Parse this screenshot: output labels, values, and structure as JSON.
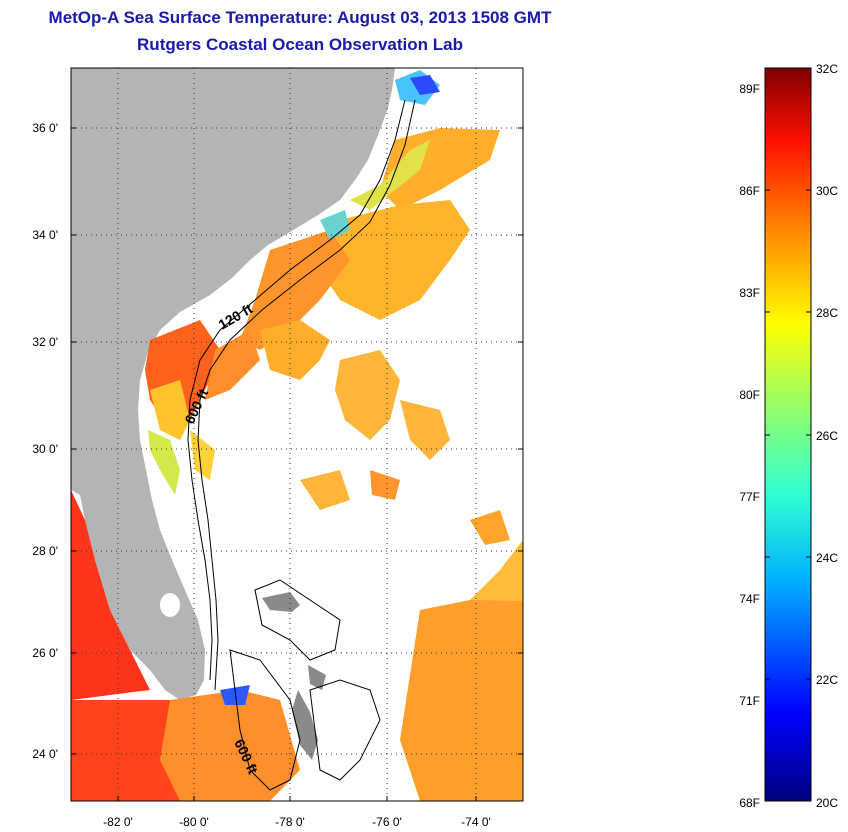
{
  "title_line1": "MetOp-A Sea Surface Temperature:  August 03, 2013 1508 GMT",
  "title_line2": "Rutgers Coastal Ocean Observation Lab",
  "lat_labels": [
    "36 0'",
    "34 0'",
    "32 0'",
    "30 0'",
    "28 0'",
    "26 0'",
    "24 0'"
  ],
  "lon_labels": [
    "-82 0'",
    "-80 0'",
    "-78 0'",
    "-76 0'",
    "-74 0'"
  ],
  "contours": {
    "shelf_120": "120 ft",
    "shelf_600a": "600 ft",
    "shelf_600b": "600 ft"
  },
  "colorbar": {
    "fahrenheit": [
      "89F",
      "86F",
      "83F",
      "80F",
      "77F",
      "74F",
      "71F",
      "68F"
    ],
    "celsius": [
      "32C",
      "30C",
      "28C",
      "26C",
      "24C",
      "22C",
      "20C"
    ]
  },
  "colors": {
    "land": "#b4b4b4",
    "ocean_nodata": "#ffffff",
    "title": "#1a1aa8"
  }
}
